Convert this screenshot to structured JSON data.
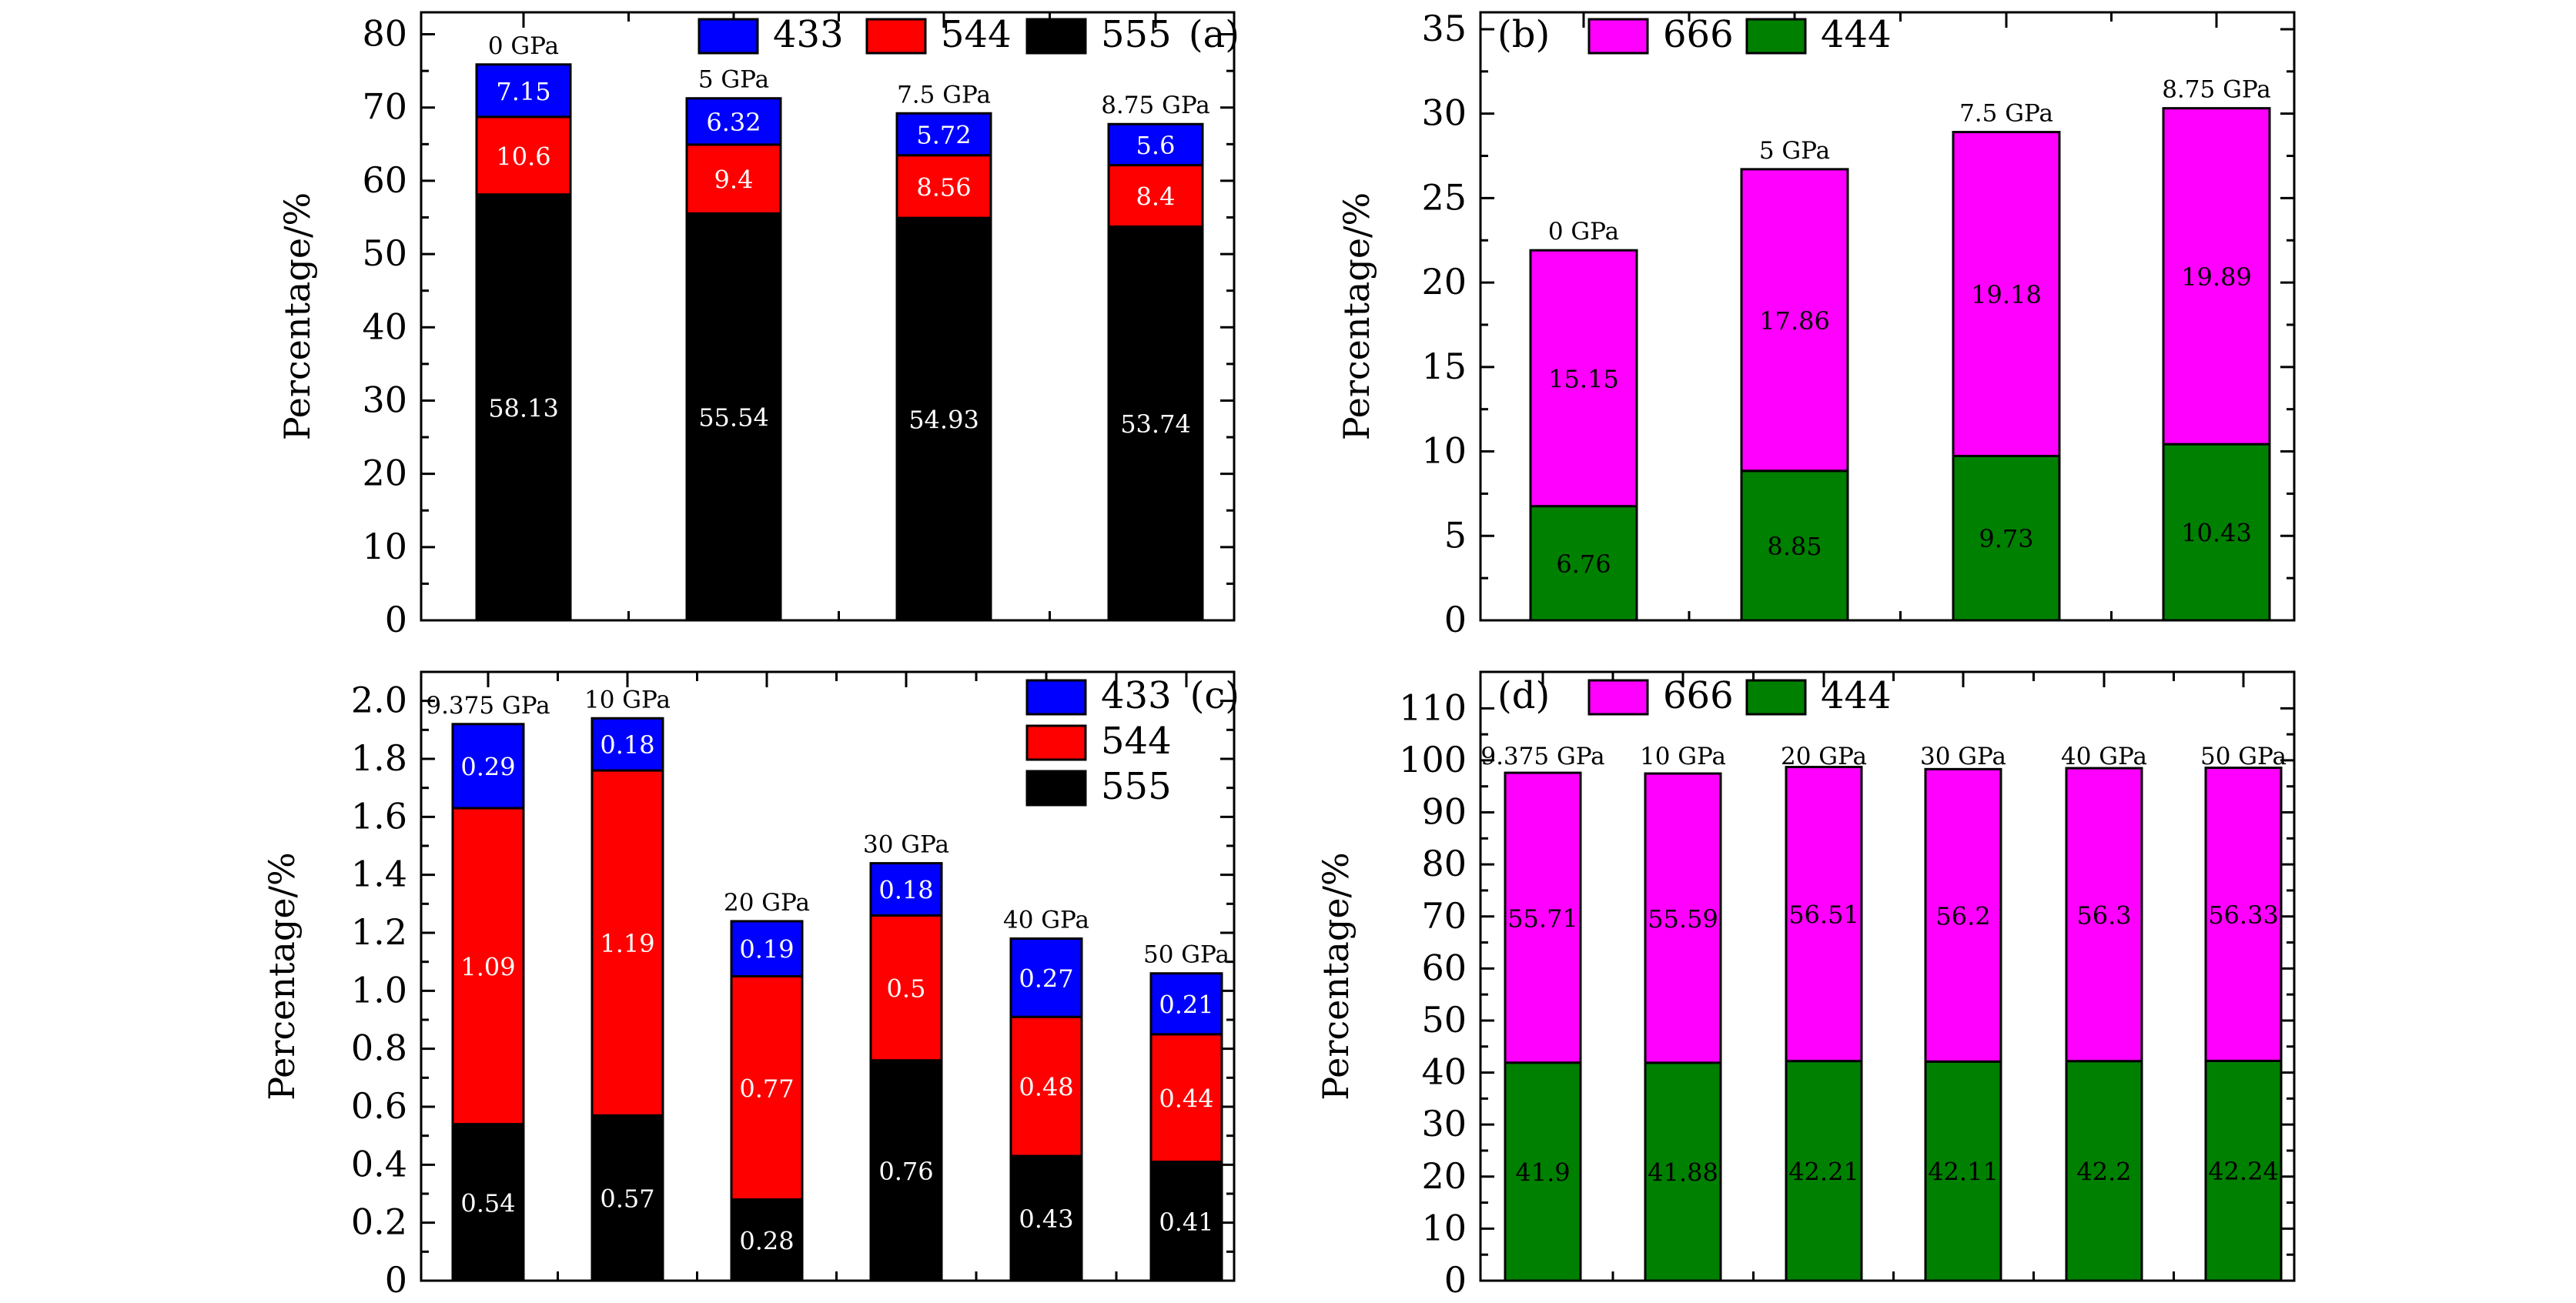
{
  "colors": {
    "c433": "#0000ff",
    "c544": "#ff0000",
    "c555": "#000000",
    "c666": "#ff00ff",
    "c444": "#008000"
  },
  "chart_data": [
    {
      "type": "bar",
      "stacked": true,
      "panel": "(a)",
      "ylabel": "Percentage/%",
      "ylim": [
        0,
        83
      ],
      "yticks": [
        0,
        10,
        20,
        30,
        40,
        50,
        60,
        70,
        80
      ],
      "categories": [
        "0 GPa",
        "5 GPa",
        "7.5 GPa",
        "8.75 GPa"
      ],
      "series": [
        {
          "name": "555",
          "color": "#000000",
          "values": [
            58.13,
            55.54,
            54.93,
            53.74
          ]
        },
        {
          "name": "544",
          "color": "#ff0000",
          "values": [
            10.6,
            9.4,
            8.56,
            8.4
          ]
        },
        {
          "name": "433",
          "color": "#0000ff",
          "values": [
            7.15,
            6.32,
            5.72,
            5.6
          ]
        }
      ],
      "value_labels": [
        [
          "58.13",
          "55.54",
          "54.93",
          "53.74"
        ],
        [
          "10.6",
          "9.4",
          "8.56",
          "8.4"
        ],
        [
          "7.15",
          "6.32",
          "5.72",
          "5.6"
        ]
      ],
      "legend": {
        "placement": "top",
        "order": [
          "433",
          "544",
          "555"
        ]
      }
    },
    {
      "type": "bar",
      "stacked": true,
      "panel": "(b)",
      "ylabel": "Percentage/%",
      "ylim": [
        0,
        36
      ],
      "yticks": [
        0,
        5,
        10,
        15,
        20,
        25,
        30,
        35
      ],
      "categories": [
        "0 GPa",
        "5 GPa",
        "7.5 GPa",
        "8.75 GPa"
      ],
      "series": [
        {
          "name": "444",
          "color": "#008000",
          "values": [
            6.76,
            8.85,
            9.73,
            10.43
          ]
        },
        {
          "name": "666",
          "color": "#ff00ff",
          "values": [
            15.15,
            17.86,
            19.18,
            19.89
          ]
        }
      ],
      "value_labels": [
        [
          "6.76",
          "8.85",
          "9.73",
          "10.43"
        ],
        [
          "15.15",
          "17.86",
          "19.18",
          "19.89"
        ]
      ],
      "legend": {
        "placement": "top-left",
        "order": [
          "666",
          "444"
        ]
      }
    },
    {
      "type": "bar",
      "stacked": true,
      "panel": "(c)",
      "ylabel": "Percentage/%",
      "ylim": [
        0,
        2.1
      ],
      "yticks": [
        "0",
        "0.2",
        "0.4",
        "0.6",
        "0.8",
        "1.0",
        "1.2",
        "1.4",
        "1.6",
        "1.8",
        "2.0"
      ],
      "categories": [
        "9.375 GPa",
        "10 GPa",
        "20 GPa",
        "30 GPa",
        "40 GPa",
        "50 GPa"
      ],
      "series": [
        {
          "name": "555",
          "color": "#000000",
          "values": [
            0.54,
            0.57,
            0.28,
            0.76,
            0.43,
            0.41
          ]
        },
        {
          "name": "544",
          "color": "#ff0000",
          "values": [
            1.09,
            1.19,
            0.77,
            0.5,
            0.48,
            0.44
          ]
        },
        {
          "name": "433",
          "color": "#0000ff",
          "values": [
            0.29,
            0.18,
            0.19,
            0.18,
            0.27,
            0.21
          ]
        }
      ],
      "value_labels": [
        [
          "0.54",
          "0.57",
          "0.28",
          "0.76",
          "0.43",
          "0.41"
        ],
        [
          "1.09",
          "1.19",
          "0.77",
          "0.5",
          "0.48",
          "0.44"
        ],
        [
          "0.29",
          "0.18",
          "0.19",
          "0.18",
          "0.27",
          "0.21"
        ]
      ],
      "legend": {
        "placement": "top-right",
        "order": [
          "433",
          "544",
          "555"
        ]
      }
    },
    {
      "type": "bar",
      "stacked": true,
      "panel": "(d)",
      "ylabel": "Percentage/%",
      "ylim": [
        0,
        117
      ],
      "yticks": [
        0,
        10,
        20,
        30,
        40,
        50,
        60,
        70,
        80,
        90,
        100,
        110
      ],
      "categories": [
        "9.375 GPa",
        "10 GPa",
        "20 GPa",
        "30 GPa",
        "40 GPa",
        "50 GPa"
      ],
      "series": [
        {
          "name": "444",
          "color": "#008000",
          "values": [
            41.9,
            41.88,
            42.21,
            42.11,
            42.2,
            42.24
          ]
        },
        {
          "name": "666",
          "color": "#ff00ff",
          "values": [
            55.71,
            55.59,
            56.51,
            56.2,
            56.3,
            56.33
          ]
        }
      ],
      "value_labels": [
        [
          "41.9",
          "41.88",
          "42.21",
          "42.11",
          "42.2",
          "42.24"
        ],
        [
          "55.71",
          "55.59",
          "56.51",
          "56.2",
          "56.3",
          "56.33"
        ]
      ],
      "legend": {
        "placement": "top-left",
        "order": [
          "666",
          "444"
        ]
      }
    }
  ]
}
